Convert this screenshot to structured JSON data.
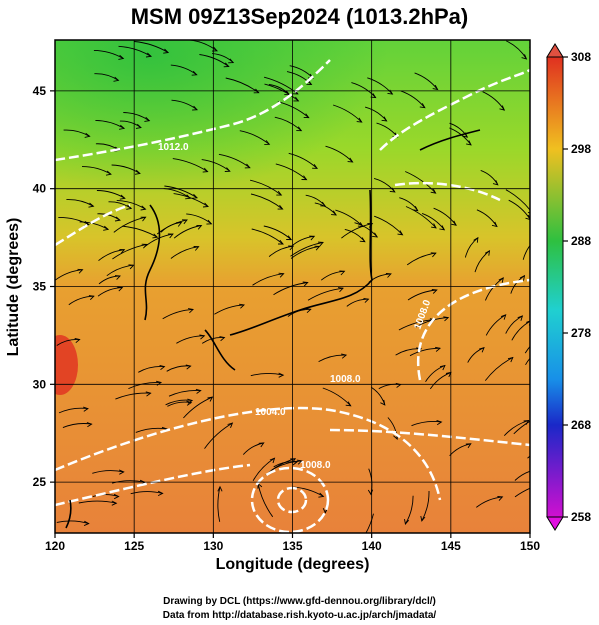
{
  "title": "MSM 09Z13Sep2024 (1013.2hPa)",
  "xlabel": "Longitude (degrees)",
  "ylabel": "Latitude  (degrees)",
  "x_ticks": [
    "120",
    "125",
    "130",
    "135",
    "140",
    "145",
    "150"
  ],
  "y_ticks": [
    "45",
    "40",
    "35",
    "30",
    "25"
  ],
  "colorbar_ticks": [
    "308",
    "298",
    "288",
    "278",
    "268",
    "258"
  ],
  "contour_labels": [
    "1012.0",
    "1008.0",
    "1004.0",
    "1008.0",
    "1008.0"
  ],
  "credit_line1": "Drawing by DCL (https://www.gfd-dennou.org/library/dcl/)",
  "credit_line2": "Data from http://database.rish.kyoto-u.ac.jp/arch/jmadata/",
  "colors": {
    "warm": "#e8823a",
    "mid": "#c8e01a",
    "cool": "#30c43a",
    "cyan": "#20d0d0",
    "blue": "#1a28c8",
    "magenta": "#d010d0",
    "hot": "#e03020"
  },
  "chart_data": {
    "type": "heatmap",
    "title": "MSM 09Z13Sep2024 (1013.2hPa)",
    "xlabel": "Longitude (degrees)",
    "ylabel": "Latitude  (degrees)",
    "xlim": [
      120,
      150
    ],
    "ylim": [
      22.4,
      47.6
    ],
    "x_ticks": [
      120,
      125,
      130,
      135,
      140,
      145,
      150
    ],
    "y_ticks": [
      25,
      30,
      35,
      40,
      45
    ],
    "colorbar": {
      "min": 258,
      "max": 308,
      "ticks": [
        258,
        268,
        278,
        288,
        298,
        308
      ]
    },
    "grid": true,
    "contour_levels": [
      1004.0,
      1008.0,
      1012.0
    ]
  }
}
